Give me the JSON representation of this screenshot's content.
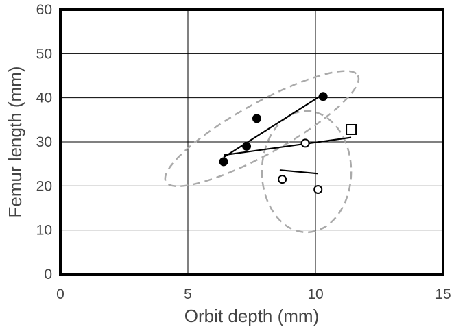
{
  "chart_data": {
    "type": "scatter",
    "title": "",
    "xlabel": "Orbit depth (mm)",
    "ylabel": "Femur length (mm)",
    "xlim": [
      0,
      15
    ],
    "ylim": [
      0,
      60
    ],
    "xticks": [
      0,
      5,
      10,
      15
    ],
    "yticks": [
      0,
      10,
      20,
      30,
      40,
      50,
      60
    ],
    "xtick_labels": [
      "0",
      "5",
      "10",
      "15"
    ],
    "ytick_labels": [
      "0",
      "10",
      "20",
      "30",
      "40",
      "50",
      "60"
    ],
    "grid": true,
    "legend": "none",
    "colors": {
      "frame": "#000000",
      "grid": "#000000",
      "ellipse": "#aaaaaa",
      "text": "#444444",
      "marker": "#000000"
    },
    "series": [
      {
        "marker": "filled-circle",
        "points": [
          {
            "x": 6.4,
            "y": 25.5
          },
          {
            "x": 7.3,
            "y": 29.0
          },
          {
            "x": 7.7,
            "y": 35.3
          },
          {
            "x": 10.3,
            "y": 40.3
          }
        ]
      },
      {
        "marker": "open-circle",
        "points": [
          {
            "x": 8.7,
            "y": 21.5
          },
          {
            "x": 9.6,
            "y": 29.7
          },
          {
            "x": 10.1,
            "y": 19.2
          }
        ]
      },
      {
        "marker": "open-square",
        "points": [
          {
            "x": 11.4,
            "y": 32.8
          }
        ]
      }
    ],
    "lines": [
      {
        "x": [
          6.4,
          10.3
        ],
        "y": [
          26.5,
          40.8
        ]
      },
      {
        "x": [
          6.4,
          11.4
        ],
        "y": [
          27.0,
          31.0
        ]
      },
      {
        "x": [
          8.6,
          10.1
        ],
        "y": [
          23.6,
          22.8
        ]
      }
    ],
    "ellipses": [
      {
        "cx": 7.9,
        "cy": 33.0,
        "rx": 4.3,
        "ry": 0.95,
        "angle_deg": 29,
        "style": "dashed"
      },
      {
        "cx": 9.65,
        "cy": 23.25,
        "rx": 1.75,
        "ry": 13.75,
        "angle_deg": 0,
        "style": "dashed"
      }
    ]
  }
}
